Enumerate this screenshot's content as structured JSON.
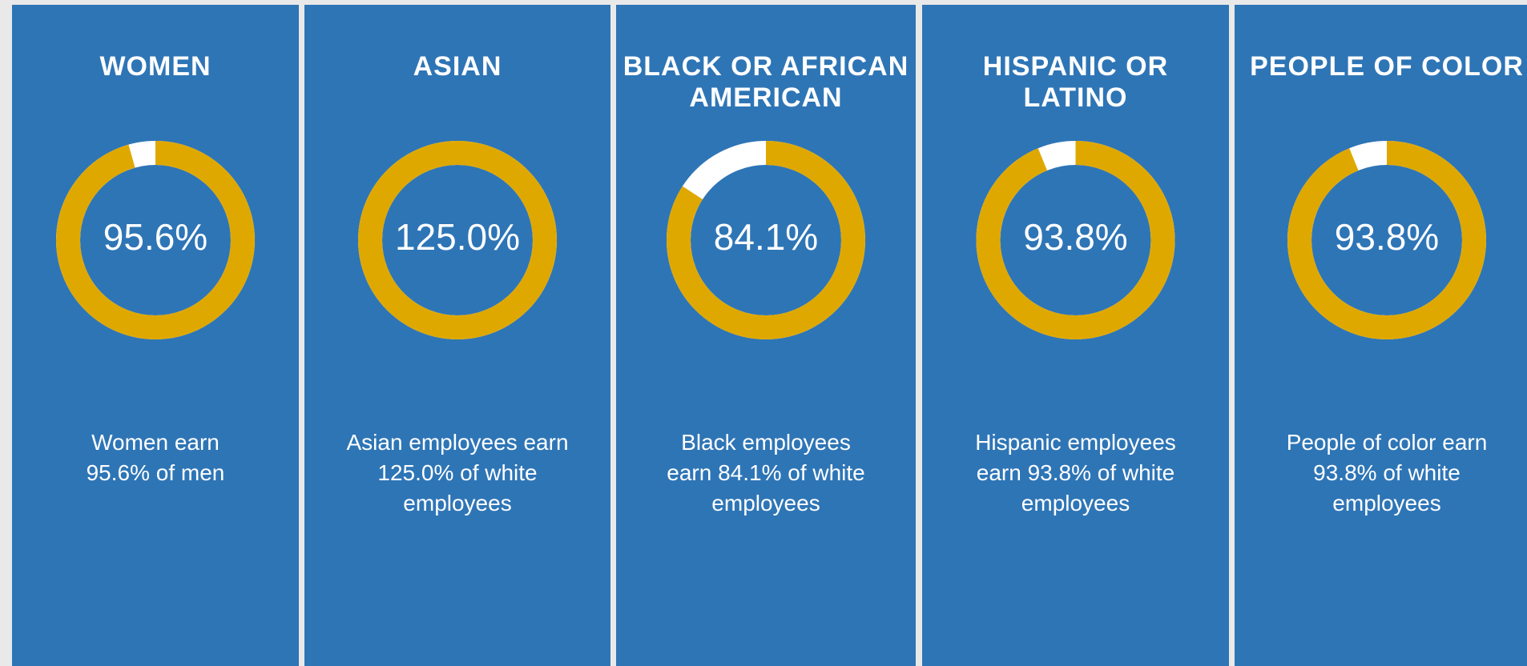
{
  "chart_data": [
    {
      "type": "pie",
      "title": [
        "WOMEN"
      ],
      "values": [
        95.6
      ],
      "value_labels": [
        "95.6%"
      ],
      "color": "#dfa800",
      "description": [
        "Women earn",
        "95.6% of men"
      ]
    },
    {
      "type": "pie",
      "title": [
        "ASIAN"
      ],
      "values": [
        125.0
      ],
      "value_labels": [
        "125.0%"
      ],
      "color": "#dfa800",
      "description": [
        "Asian employees earn",
        "125.0% of white",
        "employees"
      ]
    },
    {
      "type": "pie",
      "title": [
        "BLACK OR AFRICAN",
        "AMERICAN"
      ],
      "values": [
        84.1
      ],
      "value_labels": [
        "84.1%"
      ],
      "color": "#dfa800",
      "description": [
        "Black employees",
        "earn 84.1% of white",
        "employees"
      ]
    },
    {
      "type": "pie",
      "title": [
        "HISPANIC OR",
        "LATINO"
      ],
      "values": [
        93.8
      ],
      "value_labels": [
        "93.8%"
      ],
      "color": "#dfa800",
      "description": [
        "Hispanic employees",
        "earn 93.8% of white",
        "employees"
      ]
    },
    {
      "type": "pie",
      "title": [
        "PEOPLE OF COLOR"
      ],
      "values": [
        93.8
      ],
      "value_labels": [
        "93.8%"
      ],
      "color": "#dfa800",
      "description": [
        "People of color earn",
        "93.8% of white",
        "employees"
      ]
    }
  ]
}
